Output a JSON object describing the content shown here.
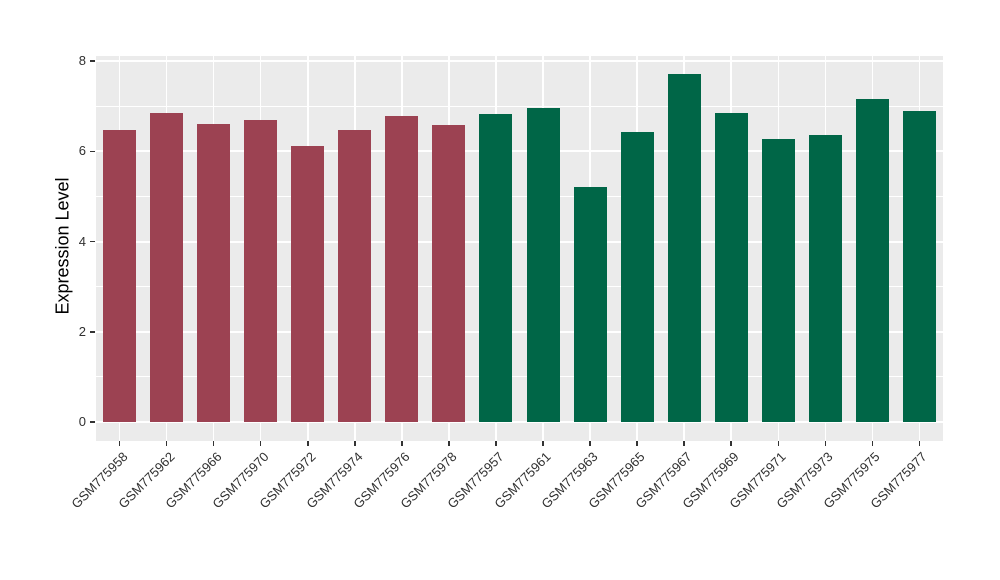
{
  "figure": {
    "background_color": "#ffffff",
    "panel_background_color": "#ebebeb",
    "gridline_color": "#ffffff",
    "tick_text_color": "#303030",
    "axis_title_color": "#000000"
  },
  "chart_data": {
    "type": "bar",
    "title": "",
    "xlabel": "",
    "ylabel": "Expression Level",
    "ylim": [
      0,
      8
    ],
    "yticks_major": [
      0,
      2,
      4,
      6,
      8
    ],
    "yticks_minor": [
      1,
      3,
      5,
      7
    ],
    "grid": true,
    "legend_position": "none",
    "x_tick_angle_deg": 45,
    "group_colors": {
      "group1": "#9c4252",
      "group2": "#006647"
    },
    "bars": [
      {
        "label": "GSM775958",
        "value": 6.48,
        "group": "group1"
      },
      {
        "label": "GSM775962",
        "value": 6.86,
        "group": "group1"
      },
      {
        "label": "GSM775966",
        "value": 6.61,
        "group": "group1"
      },
      {
        "label": "GSM775970",
        "value": 6.69,
        "group": "group1"
      },
      {
        "label": "GSM775972",
        "value": 6.13,
        "group": "group1"
      },
      {
        "label": "GSM775974",
        "value": 6.47,
        "group": "group1"
      },
      {
        "label": "GSM775976",
        "value": 6.78,
        "group": "group1"
      },
      {
        "label": "GSM775978",
        "value": 6.58,
        "group": "group1"
      },
      {
        "label": "GSM775957",
        "value": 6.83,
        "group": "group2"
      },
      {
        "label": "GSM775961",
        "value": 6.97,
        "group": "group2"
      },
      {
        "label": "GSM775963",
        "value": 5.22,
        "group": "group2"
      },
      {
        "label": "GSM775965",
        "value": 6.44,
        "group": "group2"
      },
      {
        "label": "GSM775967",
        "value": 7.71,
        "group": "group2"
      },
      {
        "label": "GSM775969",
        "value": 6.86,
        "group": "group2"
      },
      {
        "label": "GSM775971",
        "value": 6.27,
        "group": "group2"
      },
      {
        "label": "GSM775973",
        "value": 6.36,
        "group": "group2"
      },
      {
        "label": "GSM775975",
        "value": 7.17,
        "group": "group2"
      },
      {
        "label": "GSM775977",
        "value": 6.89,
        "group": "group2"
      }
    ]
  }
}
